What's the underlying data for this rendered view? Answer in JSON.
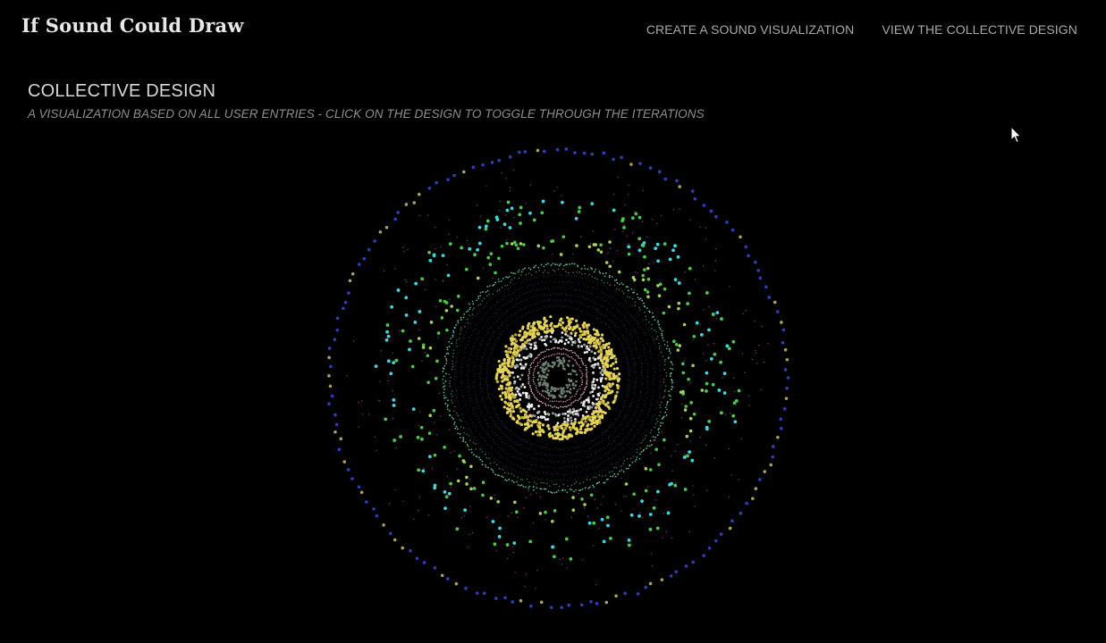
{
  "header": {
    "site_title": "If Sound Could Draw",
    "nav": [
      {
        "label": "CREATE A SOUND VISUALIZATION"
      },
      {
        "label": "VIEW THE COLLECTIVE DESIGN"
      }
    ]
  },
  "main": {
    "heading": "COLLECTIVE DESIGN",
    "subheading": "A VISUALIZATION BASED ON ALL USER ENTRIES - CLICK ON THE DESIGN TO TOGGLE THROUGH THE ITERATIONS"
  },
  "colors": {
    "background": "#000000",
    "outer_ring_blue": "#2f3fb8",
    "outer_ring_olive": "#a8a35a",
    "cyan": "#3fd6e0",
    "green": "#4cc94c",
    "teal": "#5fc9a0",
    "magenta": "#c050c0",
    "yellow": "#e6d35a",
    "white": "#f0f0f0",
    "pink": "#d9a0b0",
    "center_gray": "#6f7f70"
  },
  "icons": {
    "cursor": "mouse-pointer-icon"
  }
}
